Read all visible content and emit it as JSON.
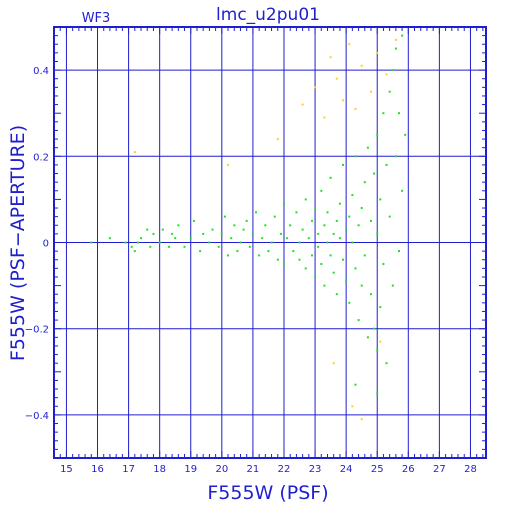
{
  "chart_data": {
    "type": "scatter",
    "title": "lmc_u2pu01",
    "panel_label": "WF3",
    "xlabel": "F555W (PSF)",
    "ylabel": "F555W (PSF−APERTURE)",
    "xlim": [
      14.6,
      28.5
    ],
    "ylim": [
      -0.5,
      0.5
    ],
    "x_ticks": [
      15,
      16,
      17,
      18,
      19,
      20,
      21,
      22,
      23,
      24,
      25,
      26,
      27,
      28
    ],
    "y_ticks": [
      -0.4,
      -0.2,
      0,
      0.2,
      0.4
    ],
    "y_tick_labels": [
      "−0.4",
      "−0.2",
      "0",
      "0.2",
      "0.4"
    ],
    "grid": true,
    "colors": {
      "axis": "#1f1fcf",
      "grid": "#1f1fcf",
      "green": "#22e022",
      "yellow": "#ffd21e"
    },
    "series": [
      {
        "color": "green",
        "points": [
          [
            15.8,
            0.0
          ],
          [
            16.4,
            0.01
          ],
          [
            16.9,
            0.0
          ],
          [
            17.1,
            -0.01
          ],
          [
            17.2,
            -0.02
          ],
          [
            17.3,
            0.0
          ],
          [
            17.4,
            0.01
          ],
          [
            17.6,
            0.03
          ],
          [
            17.7,
            -0.01
          ],
          [
            17.8,
            0.02
          ],
          [
            18.0,
            0.0
          ],
          [
            18.1,
            0.03
          ],
          [
            18.3,
            -0.01
          ],
          [
            18.4,
            0.02
          ],
          [
            18.5,
            0.01
          ],
          [
            18.6,
            0.04
          ],
          [
            18.8,
            -0.01
          ],
          [
            19.0,
            0.01
          ],
          [
            19.1,
            0.05
          ],
          [
            19.3,
            -0.02
          ],
          [
            19.4,
            0.02
          ],
          [
            19.6,
            0.0
          ],
          [
            19.7,
            0.03
          ],
          [
            19.9,
            -0.01
          ],
          [
            20.0,
            0.02
          ],
          [
            20.1,
            0.06
          ],
          [
            20.2,
            -0.03
          ],
          [
            20.3,
            0.01
          ],
          [
            20.4,
            0.04
          ],
          [
            20.5,
            -0.02
          ],
          [
            20.6,
            0.0
          ],
          [
            20.7,
            0.03
          ],
          [
            20.8,
            0.05
          ],
          [
            20.9,
            -0.01
          ],
          [
            21.0,
            0.02
          ],
          [
            21.1,
            0.07
          ],
          [
            21.2,
            -0.03
          ],
          [
            21.3,
            0.01
          ],
          [
            21.4,
            0.04
          ],
          [
            21.5,
            -0.02
          ],
          [
            21.6,
            0.0
          ],
          [
            21.7,
            0.06
          ],
          [
            21.8,
            -0.04
          ],
          [
            21.9,
            0.02
          ],
          [
            22.0,
            0.09
          ],
          [
            22.0,
            -0.05
          ],
          [
            22.1,
            0.01
          ],
          [
            22.2,
            0.04
          ],
          [
            22.3,
            -0.02
          ],
          [
            22.4,
            0.07
          ],
          [
            22.5,
            0.0
          ],
          [
            22.5,
            -0.04
          ],
          [
            22.6,
            0.03
          ],
          [
            22.7,
            0.1
          ],
          [
            22.7,
            -0.06
          ],
          [
            22.8,
            0.01
          ],
          [
            22.9,
            0.05
          ],
          [
            22.9,
            -0.03
          ],
          [
            23.0,
            0.08
          ],
          [
            23.0,
            -0.08
          ],
          [
            23.1,
            0.02
          ],
          [
            23.1,
            -0.01
          ],
          [
            23.2,
            0.12
          ],
          [
            23.2,
            -0.05
          ],
          [
            23.3,
            0.04
          ],
          [
            23.3,
            -0.1
          ],
          [
            23.4,
            0.0
          ],
          [
            23.4,
            0.07
          ],
          [
            23.5,
            -0.03
          ],
          [
            23.5,
            0.15
          ],
          [
            23.6,
            -0.07
          ],
          [
            23.6,
            0.02
          ],
          [
            23.7,
            0.05
          ],
          [
            23.7,
            -0.12
          ],
          [
            23.8,
            0.01
          ],
          [
            23.8,
            0.09
          ],
          [
            23.9,
            -0.04
          ],
          [
            23.9,
            0.18
          ],
          [
            24.0,
            -0.09
          ],
          [
            24.0,
            0.03
          ],
          [
            24.1,
            0.06
          ],
          [
            24.1,
            -0.14
          ],
          [
            24.2,
            0.0
          ],
          [
            24.2,
            0.11
          ],
          [
            24.3,
            -0.06
          ],
          [
            24.3,
            0.2
          ],
          [
            24.4,
            -0.18
          ],
          [
            24.4,
            0.04
          ],
          [
            24.5,
            0.08
          ],
          [
            24.5,
            -0.1
          ],
          [
            24.6,
            0.14
          ],
          [
            24.6,
            -0.03
          ],
          [
            24.7,
            0.22
          ],
          [
            24.7,
            -0.22
          ],
          [
            24.8,
            0.05
          ],
          [
            24.8,
            -0.12
          ],
          [
            24.9,
            0.16
          ],
          [
            24.9,
            -0.2
          ],
          [
            25.0,
            0.02
          ],
          [
            25.0,
            0.25
          ],
          [
            25.0,
            -0.25
          ],
          [
            25.1,
            0.1
          ],
          [
            25.1,
            -0.15
          ],
          [
            25.2,
            0.3
          ],
          [
            25.2,
            -0.05
          ],
          [
            25.3,
            0.18
          ],
          [
            25.3,
            -0.28
          ],
          [
            25.4,
            0.35
          ],
          [
            25.4,
            0.06
          ],
          [
            25.5,
            0.4
          ],
          [
            25.5,
            -0.1
          ],
          [
            25.6,
            0.45
          ],
          [
            25.6,
            0.2
          ],
          [
            25.7,
            0.3
          ],
          [
            25.7,
            -0.02
          ],
          [
            25.8,
            0.48
          ],
          [
            25.8,
            0.12
          ],
          [
            25.9,
            0.25
          ],
          [
            25.0,
            -0.35
          ],
          [
            24.3,
            -0.33
          ]
        ]
      },
      {
        "color": "yellow",
        "points": [
          [
            17.2,
            0.21
          ],
          [
            20.2,
            0.18
          ],
          [
            21.8,
            0.24
          ],
          [
            22.6,
            0.32
          ],
          [
            23.0,
            0.36
          ],
          [
            23.3,
            0.29
          ],
          [
            23.5,
            0.43
          ],
          [
            23.7,
            0.38
          ],
          [
            23.9,
            0.33
          ],
          [
            24.1,
            0.46
          ],
          [
            24.3,
            0.31
          ],
          [
            24.5,
            0.41
          ],
          [
            24.8,
            0.35
          ],
          [
            25.0,
            0.44
          ],
          [
            25.3,
            0.39
          ],
          [
            25.6,
            0.47
          ],
          [
            23.6,
            -0.28
          ],
          [
            24.2,
            -0.38
          ],
          [
            24.5,
            -0.41
          ],
          [
            25.1,
            -0.23
          ]
        ]
      }
    ]
  }
}
